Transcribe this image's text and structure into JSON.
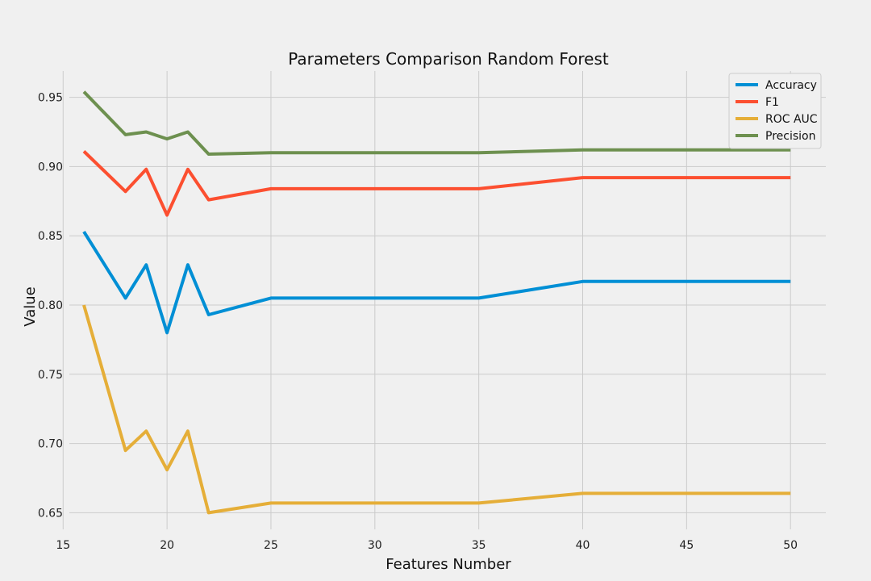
{
  "chart_data": {
    "type": "line",
    "title": "Parameters Comparison Random Forest",
    "xlabel": "Features Number",
    "ylabel": "Value",
    "x": [
      16,
      18,
      19,
      20,
      21,
      22,
      25,
      35,
      40,
      50
    ],
    "xlim": [
      15.3,
      51.7
    ],
    "ylim": [
      0.638,
      0.969
    ],
    "xticks": [
      15,
      20,
      25,
      30,
      35,
      40,
      45,
      50
    ],
    "yticks": [
      0.65,
      0.7,
      0.75,
      0.8,
      0.85,
      0.9,
      0.95
    ],
    "grid": true,
    "legend_position": "top-right",
    "series": [
      {
        "name": "Accuracy",
        "color": "#008fd5",
        "values": [
          0.853,
          0.805,
          0.829,
          0.78,
          0.829,
          0.793,
          0.805,
          0.805,
          0.817,
          0.817
        ]
      },
      {
        "name": "F1",
        "color": "#fc4f30",
        "values": [
          0.911,
          0.882,
          0.898,
          0.865,
          0.898,
          0.876,
          0.884,
          0.884,
          0.892,
          0.892
        ]
      },
      {
        "name": "ROC AUC",
        "color": "#e5ae38",
        "values": [
          0.8,
          0.695,
          0.709,
          0.681,
          0.709,
          0.65,
          0.657,
          0.657,
          0.664,
          0.664
        ]
      },
      {
        "name": "Precision",
        "color": "#6d904f",
        "values": [
          0.954,
          0.923,
          0.925,
          0.92,
          0.925,
          0.909,
          0.91,
          0.91,
          0.912,
          0.912
        ]
      }
    ]
  }
}
